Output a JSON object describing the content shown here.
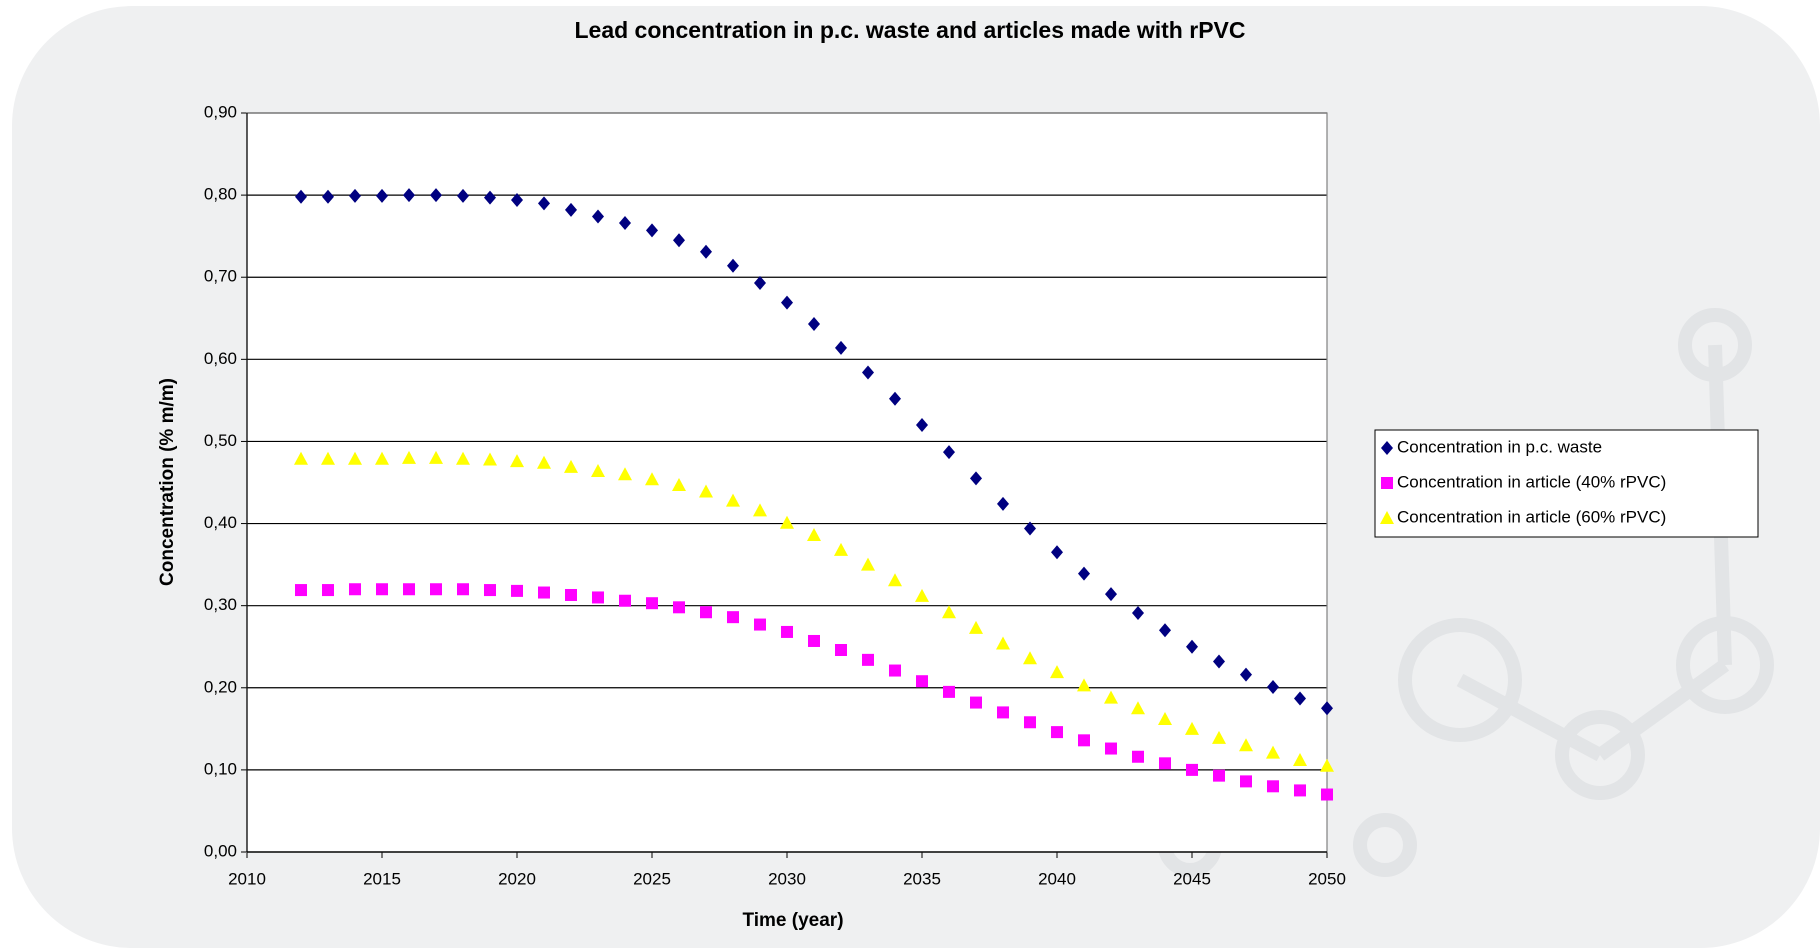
{
  "chart_data": {
    "type": "scatter",
    "title": "Lead concentration in p.c. waste and articles made with rPVC",
    "x_label": "Time (year)",
    "y_label": "Concentration  (% m/m)",
    "x": [
      2012,
      2013,
      2014,
      2015,
      2016,
      2017,
      2018,
      2019,
      2020,
      2021,
      2022,
      2023,
      2024,
      2025,
      2026,
      2027,
      2028,
      2029,
      2030,
      2031,
      2032,
      2033,
      2034,
      2035,
      2036,
      2037,
      2038,
      2039,
      2040,
      2041,
      2042,
      2043,
      2044,
      2045,
      2046,
      2047,
      2048,
      2049,
      2050
    ],
    "series": [
      {
        "name": "Concentration in p.c. waste",
        "color": "#000080",
        "marker": "diamond",
        "values": [
          0.798,
          0.798,
          0.799,
          0.799,
          0.8,
          0.8,
          0.799,
          0.797,
          0.794,
          0.79,
          0.782,
          0.774,
          0.766,
          0.757,
          0.745,
          0.731,
          0.714,
          0.693,
          0.669,
          0.643,
          0.614,
          0.584,
          0.552,
          0.52,
          0.487,
          0.455,
          0.424,
          0.394,
          0.365,
          0.339,
          0.314,
          0.291,
          0.27,
          0.25,
          0.232,
          0.216,
          0.201,
          0.187,
          0.175
        ]
      },
      {
        "name": "Concentration in article (40% rPVC)",
        "color": "#ff00ff",
        "marker": "square",
        "values": [
          0.319,
          0.319,
          0.32,
          0.32,
          0.32,
          0.32,
          0.32,
          0.319,
          0.318,
          0.316,
          0.313,
          0.31,
          0.306,
          0.303,
          0.298,
          0.292,
          0.286,
          0.277,
          0.268,
          0.257,
          0.246,
          0.234,
          0.221,
          0.208,
          0.195,
          0.182,
          0.17,
          0.158,
          0.146,
          0.136,
          0.126,
          0.116,
          0.108,
          0.1,
          0.093,
          0.086,
          0.08,
          0.075,
          0.07
        ]
      },
      {
        "name": "Concentration in article (60% rPVC)",
        "color": "#ffff00",
        "marker": "triangle",
        "values": [
          0.479,
          0.479,
          0.479,
          0.479,
          0.48,
          0.48,
          0.479,
          0.478,
          0.476,
          0.474,
          0.469,
          0.464,
          0.46,
          0.454,
          0.447,
          0.439,
          0.428,
          0.416,
          0.401,
          0.386,
          0.368,
          0.35,
          0.331,
          0.312,
          0.292,
          0.273,
          0.254,
          0.236,
          0.219,
          0.203,
          0.188,
          0.175,
          0.162,
          0.15,
          0.139,
          0.13,
          0.121,
          0.112,
          0.105
        ]
      }
    ],
    "xlim": [
      2010,
      2050
    ],
    "xticks": [
      2010,
      2015,
      2020,
      2025,
      2030,
      2035,
      2040,
      2045,
      2050
    ],
    "ylim": [
      0,
      0.9
    ],
    "yticks": [
      {
        "value": 0,
        "label": "0,00"
      },
      {
        "value": 0.1,
        "label": "0,10"
      },
      {
        "value": 0.2,
        "label": "0,20"
      },
      {
        "value": 0.3,
        "label": "0,30"
      },
      {
        "value": 0.4,
        "label": "0,40"
      },
      {
        "value": 0.5,
        "label": "0,50"
      },
      {
        "value": 0.6,
        "label": "0,60"
      },
      {
        "value": 0.7,
        "label": "0,70"
      },
      {
        "value": 0.8,
        "label": "0,80"
      },
      {
        "value": 0.9,
        "label": "0,90"
      }
    ],
    "grid": true,
    "legend": "right"
  }
}
